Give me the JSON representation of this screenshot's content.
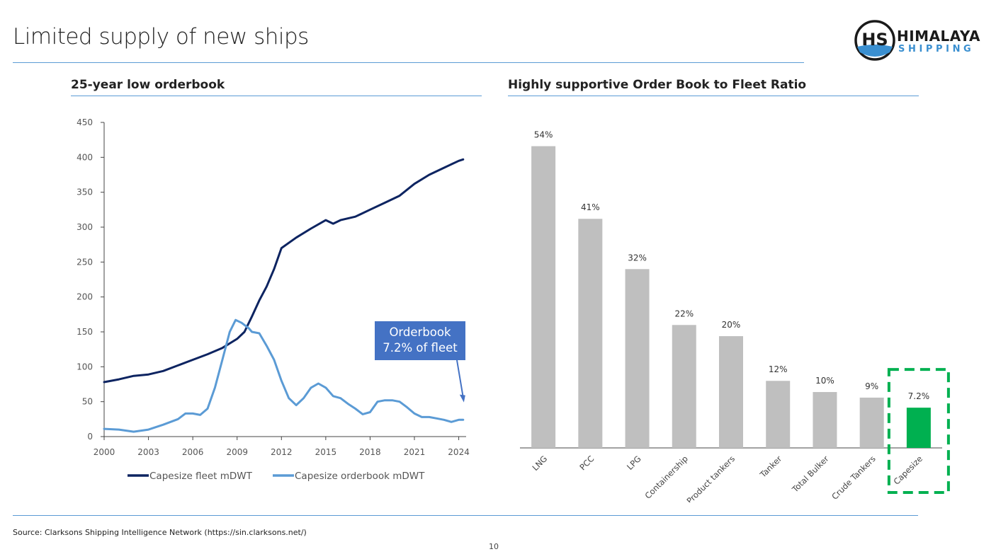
{
  "page": {
    "title": "Limited supply of new ships",
    "source": "Source: Clarksons Shipping Intelligence Network (https://sin.clarksons.net/)",
    "page_number": "10",
    "logo": {
      "monogram": "HS",
      "line1": "HIMALAYA",
      "line2": "SHIPPING"
    }
  },
  "left_section": {
    "title": "25-year low orderbook"
  },
  "right_section": {
    "title": "Highly supportive Order Book to Fleet Ratio"
  },
  "colors": {
    "fleet": "#0d2461",
    "orderbook": "#5b9bd5",
    "bar": "#bfbfbf",
    "highlight_bar": "#00b050",
    "highlight_box": "#00b050",
    "callout_bg": "#4472c4",
    "rule": "#5b9bd5"
  },
  "chart_data": [
    {
      "type": "line",
      "title": "25-year low orderbook",
      "xlim": [
        2000,
        2024.5
      ],
      "ylim": [
        0,
        450
      ],
      "x_ticks": [
        2000,
        2003,
        2006,
        2009,
        2012,
        2015,
        2018,
        2021,
        2024
      ],
      "y_ticks": [
        0,
        50,
        100,
        150,
        200,
        250,
        300,
        350,
        400,
        450
      ],
      "grid": false,
      "legend_position": "bottom",
      "series": [
        {
          "name": "Capesize fleet mDWT",
          "x": [
            2000,
            2001,
            2002,
            2003,
            2004,
            2005,
            2006,
            2007,
            2008,
            2009,
            2009.5,
            2010,
            2010.5,
            2011,
            2011.5,
            2012,
            2013,
            2014,
            2015,
            2015.5,
            2016,
            2017,
            2018,
            2019,
            2020,
            2021,
            2022,
            2023,
            2024,
            2024.3
          ],
          "y": [
            78,
            82,
            87,
            89,
            94,
            102,
            110,
            118,
            127,
            140,
            150,
            172,
            195,
            215,
            240,
            270,
            285,
            298,
            310,
            305,
            310,
            315,
            325,
            335,
            345,
            362,
            375,
            385,
            395,
            397
          ]
        },
        {
          "name": "Capesize orderbook mDWT",
          "x": [
            2000,
            2001,
            2002,
            2003,
            2004,
            2005,
            2005.5,
            2006,
            2006.5,
            2007,
            2007.5,
            2008,
            2008.5,
            2008.9,
            2009.3,
            2009.8,
            2010,
            2010.5,
            2011,
            2011.5,
            2012,
            2012.5,
            2013,
            2013.5,
            2014,
            2014.5,
            2015,
            2015.5,
            2016,
            2016.5,
            2017,
            2017.5,
            2018,
            2018.5,
            2019,
            2019.5,
            2020,
            2020.5,
            2021,
            2021.5,
            2022,
            2022.5,
            2023,
            2023.5,
            2024,
            2024.3
          ],
          "y": [
            11,
            10,
            7,
            10,
            17,
            25,
            33,
            33,
            31,
            40,
            70,
            110,
            150,
            167,
            163,
            155,
            150,
            148,
            130,
            110,
            80,
            55,
            45,
            55,
            70,
            76,
            70,
            58,
            55,
            47,
            40,
            32,
            35,
            50,
            52,
            52,
            50,
            42,
            33,
            28,
            28,
            26,
            24,
            21,
            24,
            24
          ]
        }
      ],
      "annotation": {
        "text_line1": "Orderbook",
        "text_line2": "7.2% of fleet"
      }
    },
    {
      "type": "bar",
      "title": "Highly supportive Order Book to Fleet Ratio",
      "categories": [
        "LNG",
        "PCC",
        "LPG",
        "Containership",
        "Product tankers",
        "Tanker",
        "Total Bulker",
        "Crude Tankers",
        "Capesize"
      ],
      "values": [
        54,
        41,
        32,
        22,
        20,
        12,
        10,
        9,
        7.2
      ],
      "labels": [
        "54%",
        "41%",
        "32%",
        "22%",
        "20%",
        "12%",
        "10%",
        "9%",
        "7.2%"
      ],
      "highlight": "Capesize",
      "ylim": [
        0,
        58
      ]
    }
  ]
}
